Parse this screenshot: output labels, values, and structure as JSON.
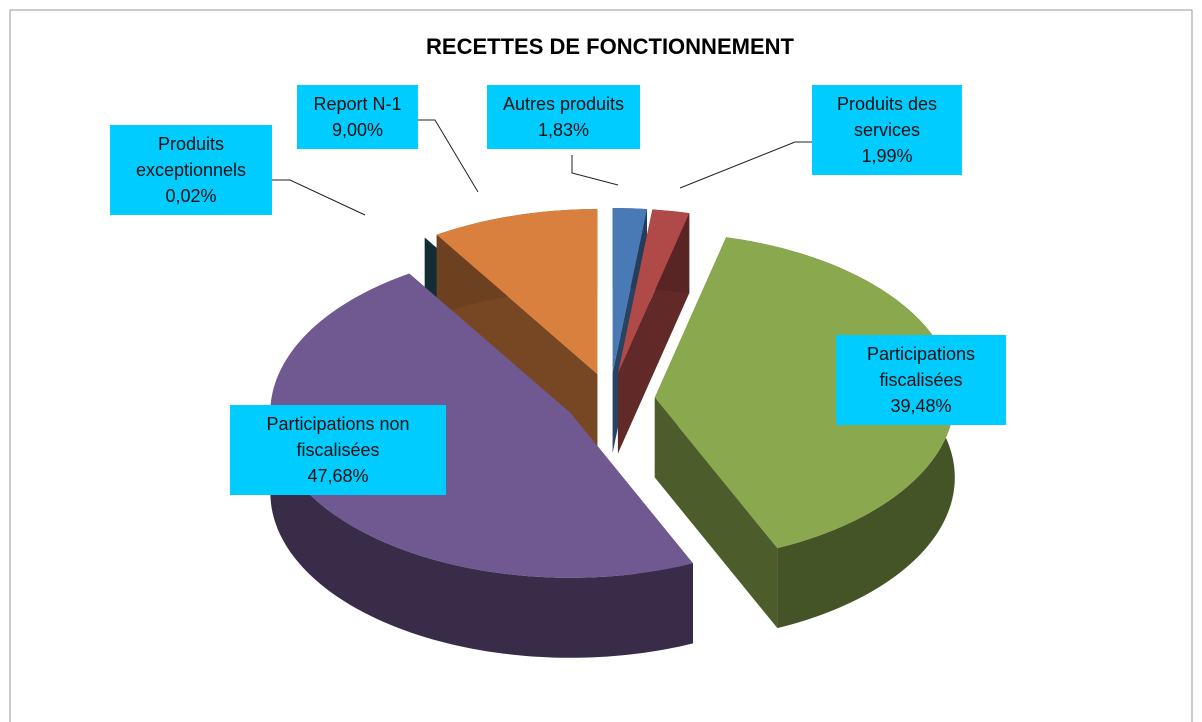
{
  "chart_data": {
    "type": "pie",
    "title": "RECETTES DE FONCTIONNEMENT",
    "categories": [
      "Autres produits",
      "Produits des services",
      "Participations fiscalisées",
      "Participations non fiscalisées",
      "Produits exceptionnels",
      "Report N-1"
    ],
    "values": [
      1.83,
      1.99,
      39.48,
      47.68,
      0.02,
      9.0
    ],
    "value_labels": [
      "1,83%",
      "1,99%",
      "39,48%",
      "47,68%",
      "0,02%",
      "9,00%"
    ],
    "colors": [
      "#4a7ab5",
      "#b04a48",
      "#8aa84e",
      "#705891",
      "#24505e",
      "#d9803e"
    ]
  }
}
